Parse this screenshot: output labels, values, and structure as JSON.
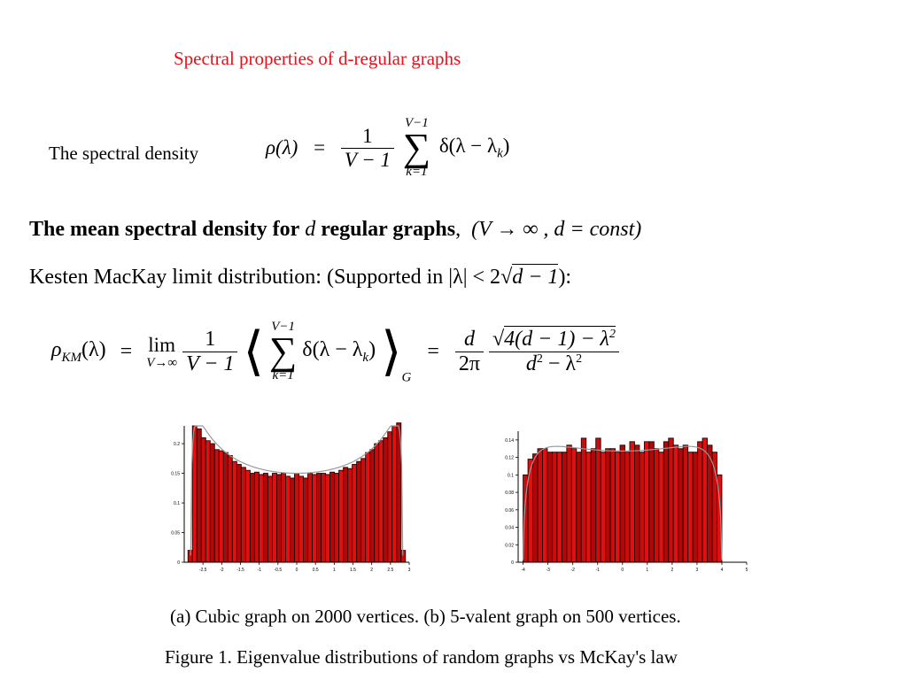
{
  "slide": {
    "title": "Spectral properties of d-regular graphs",
    "spectral_density_label": "The spectral density",
    "heading_bold": "The mean spectral density for",
    "heading_d": "d",
    "heading_bold2": "regular graphs",
    "heading_cond": "(V → ∞ , d = const)",
    "kesten_text": "Kesten MacKay limit distribution: (Supported in |λ| < 2",
    "kesten_sqrt": "d − 1",
    "kesten_end": "):",
    "caption_a": "(a) Cubic graph on 2000 vertices. (b) 5-valent graph on 500 vertices.",
    "caption_fig": "Figure 1. Eigenvalue distributions of random graphs vs McKay's law"
  },
  "formula1": {
    "lhs": "ρ(λ)",
    "eq": "=",
    "frac_num": "1",
    "frac_den": "V − 1",
    "sum_top": "V−1",
    "sum_bot": "k=1",
    "body": "δ(λ − λ",
    "sub": "k",
    "close": ")"
  },
  "formula2": {
    "lhs": "ρ",
    "lhs_sub": "KM",
    "lhs_arg": "(λ)",
    "eq": "=",
    "lim": "lim",
    "lim_sub": "V→∞",
    "frac_num": "1",
    "frac_den": "V − 1",
    "sum_top": "V−1",
    "sum_bot": "k=1",
    "body": "δ(λ − λ",
    "sub": "k",
    "close": ")",
    "avg_sub": "G",
    "eq2": "=",
    "d_num": "d",
    "d_den": "2π",
    "rad": "4(d − 1) − λ",
    "rad_exp": "2",
    "den": "d",
    "den_exp": "2",
    "den_rest": " − λ",
    "den_exp2": "2"
  },
  "chart_data": [
    {
      "type": "bar",
      "ylim": [
        0,
        0.23
      ],
      "xlim": [
        -3,
        3
      ],
      "yticks": [
        0,
        0.05,
        0.1,
        0.15,
        0.2
      ],
      "ytick_labels": [
        "0",
        "0.05",
        "0.1",
        "0.15",
        "0.2"
      ],
      "xticks": [
        -2.5,
        -2,
        -1.5,
        -1,
        -0.5,
        0,
        0.5,
        1,
        1.5,
        2,
        2.5,
        3
      ],
      "xtick_labels": [
        "-2.5",
        "-2",
        "-1.5",
        "-1",
        "-0.5",
        "0",
        "0.5",
        "1",
        "1.5",
        "2",
        "2.5",
        "3"
      ],
      "bar_range": [
        -2.9,
        2.9
      ],
      "values": [
        0.02,
        0.23,
        0.225,
        0.21,
        0.205,
        0.2,
        0.19,
        0.188,
        0.185,
        0.18,
        0.17,
        0.165,
        0.16,
        0.155,
        0.15,
        0.152,
        0.148,
        0.15,
        0.145,
        0.15,
        0.148,
        0.15,
        0.145,
        0.142,
        0.15,
        0.145,
        0.142,
        0.15,
        0.148,
        0.15,
        0.15,
        0.148,
        0.152,
        0.15,
        0.155,
        0.16,
        0.158,
        0.165,
        0.17,
        0.175,
        0.185,
        0.19,
        0.2,
        0.205,
        0.21,
        0.22,
        0.23,
        0.235,
        0.02
      ],
      "curve": "McKay law, d = 3"
    },
    {
      "type": "bar",
      "ylim": [
        0,
        0.15
      ],
      "xlim": [
        -4.2,
        5
      ],
      "yticks": [
        0,
        0.02,
        0.04,
        0.06,
        0.08,
        0.1,
        0.12,
        0.14
      ],
      "ytick_labels": [
        "0",
        "0.02",
        "0.04",
        "0.06",
        "0.08",
        "0.1",
        "0.12",
        "0.14"
      ],
      "xticks": [
        -4,
        -3,
        -2,
        -1,
        0,
        1,
        2,
        3,
        4,
        5
      ],
      "xtick_labels": [
        "-4",
        "-3",
        "-2",
        "-1",
        "0",
        "1",
        "2",
        "3",
        "4",
        "5"
      ],
      "bar_range": [
        -4.0,
        4.0
      ],
      "values": [
        0.1,
        0.118,
        0.124,
        0.13,
        0.13,
        0.126,
        0.126,
        0.126,
        0.126,
        0.134,
        0.13,
        0.126,
        0.142,
        0.126,
        0.13,
        0.142,
        0.126,
        0.13,
        0.13,
        0.126,
        0.134,
        0.126,
        0.138,
        0.134,
        0.126,
        0.138,
        0.138,
        0.13,
        0.126,
        0.138,
        0.142,
        0.134,
        0.13,
        0.134,
        0.126,
        0.126,
        0.138,
        0.142,
        0.134,
        0.126,
        0.1
      ],
      "curve": "McKay law, d = 5"
    }
  ]
}
